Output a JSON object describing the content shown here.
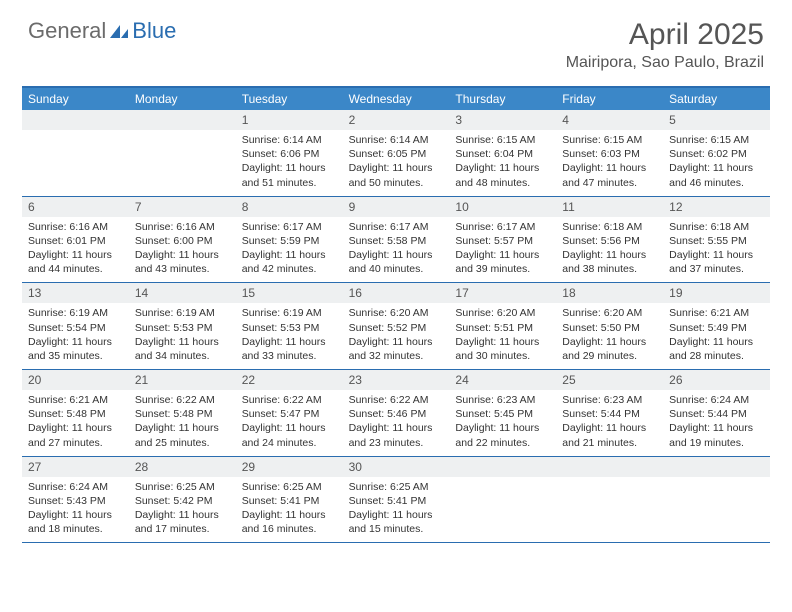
{
  "logo": {
    "general": "General",
    "blue": "Blue"
  },
  "title": "April 2025",
  "location": "Mairipora, Sao Paulo, Brazil",
  "colors": {
    "header_bar": "#3b87c8",
    "border": "#2a6db0",
    "daynum_bg": "#eef0f1",
    "text": "#333333",
    "title_text": "#555555"
  },
  "weekdays": [
    "Sunday",
    "Monday",
    "Tuesday",
    "Wednesday",
    "Thursday",
    "Friday",
    "Saturday"
  ],
  "weeks": [
    [
      {
        "n": "",
        "sr": "",
        "ss": "",
        "dl": ""
      },
      {
        "n": "",
        "sr": "",
        "ss": "",
        "dl": ""
      },
      {
        "n": "1",
        "sr": "Sunrise: 6:14 AM",
        "ss": "Sunset: 6:06 PM",
        "dl": "Daylight: 11 hours and 51 minutes."
      },
      {
        "n": "2",
        "sr": "Sunrise: 6:14 AM",
        "ss": "Sunset: 6:05 PM",
        "dl": "Daylight: 11 hours and 50 minutes."
      },
      {
        "n": "3",
        "sr": "Sunrise: 6:15 AM",
        "ss": "Sunset: 6:04 PM",
        "dl": "Daylight: 11 hours and 48 minutes."
      },
      {
        "n": "4",
        "sr": "Sunrise: 6:15 AM",
        "ss": "Sunset: 6:03 PM",
        "dl": "Daylight: 11 hours and 47 minutes."
      },
      {
        "n": "5",
        "sr": "Sunrise: 6:15 AM",
        "ss": "Sunset: 6:02 PM",
        "dl": "Daylight: 11 hours and 46 minutes."
      }
    ],
    [
      {
        "n": "6",
        "sr": "Sunrise: 6:16 AM",
        "ss": "Sunset: 6:01 PM",
        "dl": "Daylight: 11 hours and 44 minutes."
      },
      {
        "n": "7",
        "sr": "Sunrise: 6:16 AM",
        "ss": "Sunset: 6:00 PM",
        "dl": "Daylight: 11 hours and 43 minutes."
      },
      {
        "n": "8",
        "sr": "Sunrise: 6:17 AM",
        "ss": "Sunset: 5:59 PM",
        "dl": "Daylight: 11 hours and 42 minutes."
      },
      {
        "n": "9",
        "sr": "Sunrise: 6:17 AM",
        "ss": "Sunset: 5:58 PM",
        "dl": "Daylight: 11 hours and 40 minutes."
      },
      {
        "n": "10",
        "sr": "Sunrise: 6:17 AM",
        "ss": "Sunset: 5:57 PM",
        "dl": "Daylight: 11 hours and 39 minutes."
      },
      {
        "n": "11",
        "sr": "Sunrise: 6:18 AM",
        "ss": "Sunset: 5:56 PM",
        "dl": "Daylight: 11 hours and 38 minutes."
      },
      {
        "n": "12",
        "sr": "Sunrise: 6:18 AM",
        "ss": "Sunset: 5:55 PM",
        "dl": "Daylight: 11 hours and 37 minutes."
      }
    ],
    [
      {
        "n": "13",
        "sr": "Sunrise: 6:19 AM",
        "ss": "Sunset: 5:54 PM",
        "dl": "Daylight: 11 hours and 35 minutes."
      },
      {
        "n": "14",
        "sr": "Sunrise: 6:19 AM",
        "ss": "Sunset: 5:53 PM",
        "dl": "Daylight: 11 hours and 34 minutes."
      },
      {
        "n": "15",
        "sr": "Sunrise: 6:19 AM",
        "ss": "Sunset: 5:53 PM",
        "dl": "Daylight: 11 hours and 33 minutes."
      },
      {
        "n": "16",
        "sr": "Sunrise: 6:20 AM",
        "ss": "Sunset: 5:52 PM",
        "dl": "Daylight: 11 hours and 32 minutes."
      },
      {
        "n": "17",
        "sr": "Sunrise: 6:20 AM",
        "ss": "Sunset: 5:51 PM",
        "dl": "Daylight: 11 hours and 30 minutes."
      },
      {
        "n": "18",
        "sr": "Sunrise: 6:20 AM",
        "ss": "Sunset: 5:50 PM",
        "dl": "Daylight: 11 hours and 29 minutes."
      },
      {
        "n": "19",
        "sr": "Sunrise: 6:21 AM",
        "ss": "Sunset: 5:49 PM",
        "dl": "Daylight: 11 hours and 28 minutes."
      }
    ],
    [
      {
        "n": "20",
        "sr": "Sunrise: 6:21 AM",
        "ss": "Sunset: 5:48 PM",
        "dl": "Daylight: 11 hours and 27 minutes."
      },
      {
        "n": "21",
        "sr": "Sunrise: 6:22 AM",
        "ss": "Sunset: 5:48 PM",
        "dl": "Daylight: 11 hours and 25 minutes."
      },
      {
        "n": "22",
        "sr": "Sunrise: 6:22 AM",
        "ss": "Sunset: 5:47 PM",
        "dl": "Daylight: 11 hours and 24 minutes."
      },
      {
        "n": "23",
        "sr": "Sunrise: 6:22 AM",
        "ss": "Sunset: 5:46 PM",
        "dl": "Daylight: 11 hours and 23 minutes."
      },
      {
        "n": "24",
        "sr": "Sunrise: 6:23 AM",
        "ss": "Sunset: 5:45 PM",
        "dl": "Daylight: 11 hours and 22 minutes."
      },
      {
        "n": "25",
        "sr": "Sunrise: 6:23 AM",
        "ss": "Sunset: 5:44 PM",
        "dl": "Daylight: 11 hours and 21 minutes."
      },
      {
        "n": "26",
        "sr": "Sunrise: 6:24 AM",
        "ss": "Sunset: 5:44 PM",
        "dl": "Daylight: 11 hours and 19 minutes."
      }
    ],
    [
      {
        "n": "27",
        "sr": "Sunrise: 6:24 AM",
        "ss": "Sunset: 5:43 PM",
        "dl": "Daylight: 11 hours and 18 minutes."
      },
      {
        "n": "28",
        "sr": "Sunrise: 6:25 AM",
        "ss": "Sunset: 5:42 PM",
        "dl": "Daylight: 11 hours and 17 minutes."
      },
      {
        "n": "29",
        "sr": "Sunrise: 6:25 AM",
        "ss": "Sunset: 5:41 PM",
        "dl": "Daylight: 11 hours and 16 minutes."
      },
      {
        "n": "30",
        "sr": "Sunrise: 6:25 AM",
        "ss": "Sunset: 5:41 PM",
        "dl": "Daylight: 11 hours and 15 minutes."
      },
      {
        "n": "",
        "sr": "",
        "ss": "",
        "dl": ""
      },
      {
        "n": "",
        "sr": "",
        "ss": "",
        "dl": ""
      },
      {
        "n": "",
        "sr": "",
        "ss": "",
        "dl": ""
      }
    ]
  ]
}
